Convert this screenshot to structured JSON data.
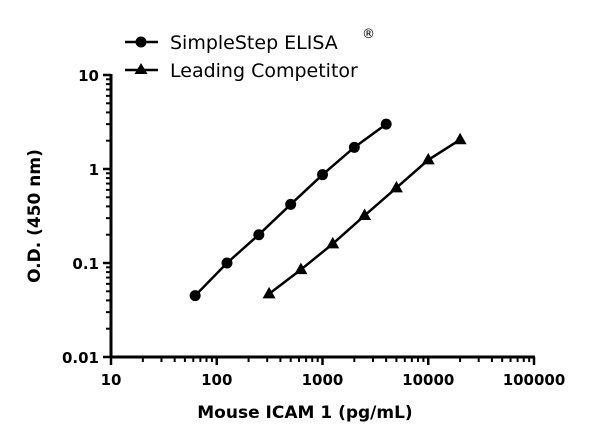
{
  "chart_data": {
    "type": "line",
    "xlabel": "Mouse ICAM 1 (pg/mL)",
    "ylabel": "O.D. (450 nm)",
    "xscale": "log",
    "yscale": "log",
    "xlim": [
      10,
      100000
    ],
    "ylim": [
      0.01,
      10
    ],
    "xticks": [
      "10",
      "100",
      "1000",
      "10000",
      "100000"
    ],
    "yticks": [
      "0.01",
      "0.1",
      "1",
      "10"
    ],
    "grid": false,
    "legend": "top-left",
    "series": [
      {
        "name": "SimpleStep ELISA",
        "superscript": "®",
        "marker": "circle",
        "color": "#000000",
        "x": [
          62.5,
          125,
          250,
          500,
          1000,
          2000,
          4000
        ],
        "y": [
          0.045,
          0.1,
          0.2,
          0.42,
          0.87,
          1.7,
          3.0
        ]
      },
      {
        "name": "Leading Competitor",
        "marker": "triangle",
        "color": "#000000",
        "x": [
          312.5,
          625,
          1250,
          2500,
          5000,
          10000,
          20000
        ],
        "y": [
          0.047,
          0.085,
          0.16,
          0.32,
          0.63,
          1.25,
          2.05
        ]
      }
    ]
  }
}
